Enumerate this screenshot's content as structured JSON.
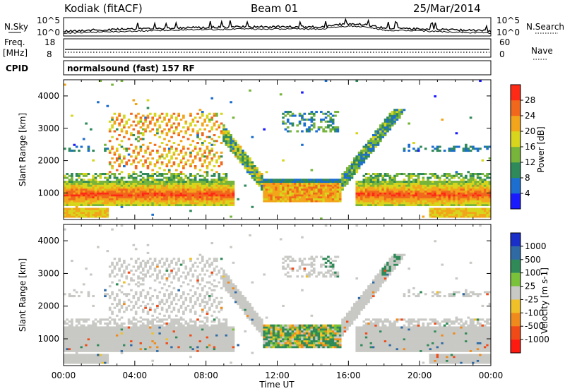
{
  "header": {
    "station": "Kodiak (fitACF)",
    "beam": "Beam 01",
    "date": "25/Mar/2014"
  },
  "strip": {
    "nsky_label": "N.Sky",
    "nsearch_label": "N.Search",
    "counts_ticks": [
      "10^5",
      "10^0"
    ],
    "freq_label_1": "Freq.",
    "freq_label_2": "[MHz]",
    "freq_ticks": [
      "18",
      "8"
    ],
    "nave_label": "Nave",
    "nave_ticks": [
      "60",
      "0"
    ],
    "cpid_label": "CPID",
    "cpid_value": "normalsound (fast) 157 RF"
  },
  "colorbars": {
    "power": {
      "label": "Power [dB]",
      "ticks": [
        "28",
        "24",
        "20",
        "16",
        "12",
        "8",
        "4"
      ],
      "colors": [
        "#1a1aff",
        "#1c6ecf",
        "#2f8a5a",
        "#76b43a",
        "#d7d51c",
        "#f2a51a",
        "#f1681c",
        "#ff2a16"
      ]
    },
    "velocity": {
      "label": "Velocity [m s-1]",
      "ticks": [
        "1000",
        "500",
        "100",
        "25",
        "-25",
        "-100",
        "-500",
        "-1000"
      ],
      "colors": [
        "#1a2ec8",
        "#2f6aa5",
        "#2f8a58",
        "#7ac23a",
        "#c8c8c4",
        "#f0c028",
        "#f08a1c",
        "#f04a16",
        "#ff1a10"
      ]
    }
  },
  "chart_data": [
    {
      "type": "heatmap",
      "title": "",
      "xlabel": "Time UT",
      "ylabel": "Slant Range [km]",
      "x_ticks": [
        "00:00",
        "04:00",
        "08:00",
        "12:00",
        "16:00",
        "20:00",
        "00:00"
      ],
      "y_ticks": [
        "1000",
        "2000",
        "3000",
        "4000"
      ],
      "xlim": [
        0,
        24
      ],
      "ylim": [
        180,
        4500
      ],
      "variable": "Power",
      "grid": false,
      "regions": [
        {
          "t0": 0,
          "t1": 9.6,
          "r0": 600,
          "r1": 1350,
          "level": "strong",
          "note": "main band"
        },
        {
          "t0": 0,
          "t1": 2.5,
          "r0": 250,
          "r1": 550,
          "level": "strong"
        },
        {
          "t0": 11.2,
          "t1": 15.6,
          "r0": 700,
          "r1": 1450,
          "level": "strong"
        },
        {
          "t0": 16.4,
          "t1": 24,
          "r0": 600,
          "r1": 1350,
          "level": "strong"
        },
        {
          "t0": 20.5,
          "t1": 24,
          "r0": 250,
          "r1": 550,
          "level": "strong"
        },
        {
          "t0": 3,
          "t1": 8.5,
          "r0": 1400,
          "r1": 3400,
          "level": "medium",
          "note": "diagonal streaks"
        },
        {
          "t0": 14.5,
          "t1": 19,
          "r0": 1500,
          "r1": 3500,
          "level": "weak"
        }
      ]
    },
    {
      "type": "heatmap",
      "title": "",
      "xlabel": "Time UT",
      "ylabel": "Slant Range [km]",
      "x_ticks": [
        "00:00",
        "04:00",
        "08:00",
        "12:00",
        "16:00",
        "20:00",
        "00:00"
      ],
      "y_ticks": [
        "1000",
        "2000",
        "3000",
        "4000"
      ],
      "xlim": [
        0,
        24
      ],
      "ylim": [
        180,
        4500
      ],
      "variable": "Velocity",
      "grid": false,
      "regions": [
        {
          "t0": 0,
          "t1": 9.6,
          "r0": 600,
          "r1": 1500,
          "level": "ground"
        },
        {
          "t0": 16.4,
          "t1": 24,
          "r0": 600,
          "r1": 1500,
          "level": "ground"
        },
        {
          "t0": 11.2,
          "t1": 15.6,
          "r0": 700,
          "r1": 1800,
          "level": "mixed"
        },
        {
          "t0": 3,
          "t1": 8.5,
          "r0": 1400,
          "r1": 3400,
          "level": "ground"
        }
      ]
    }
  ]
}
